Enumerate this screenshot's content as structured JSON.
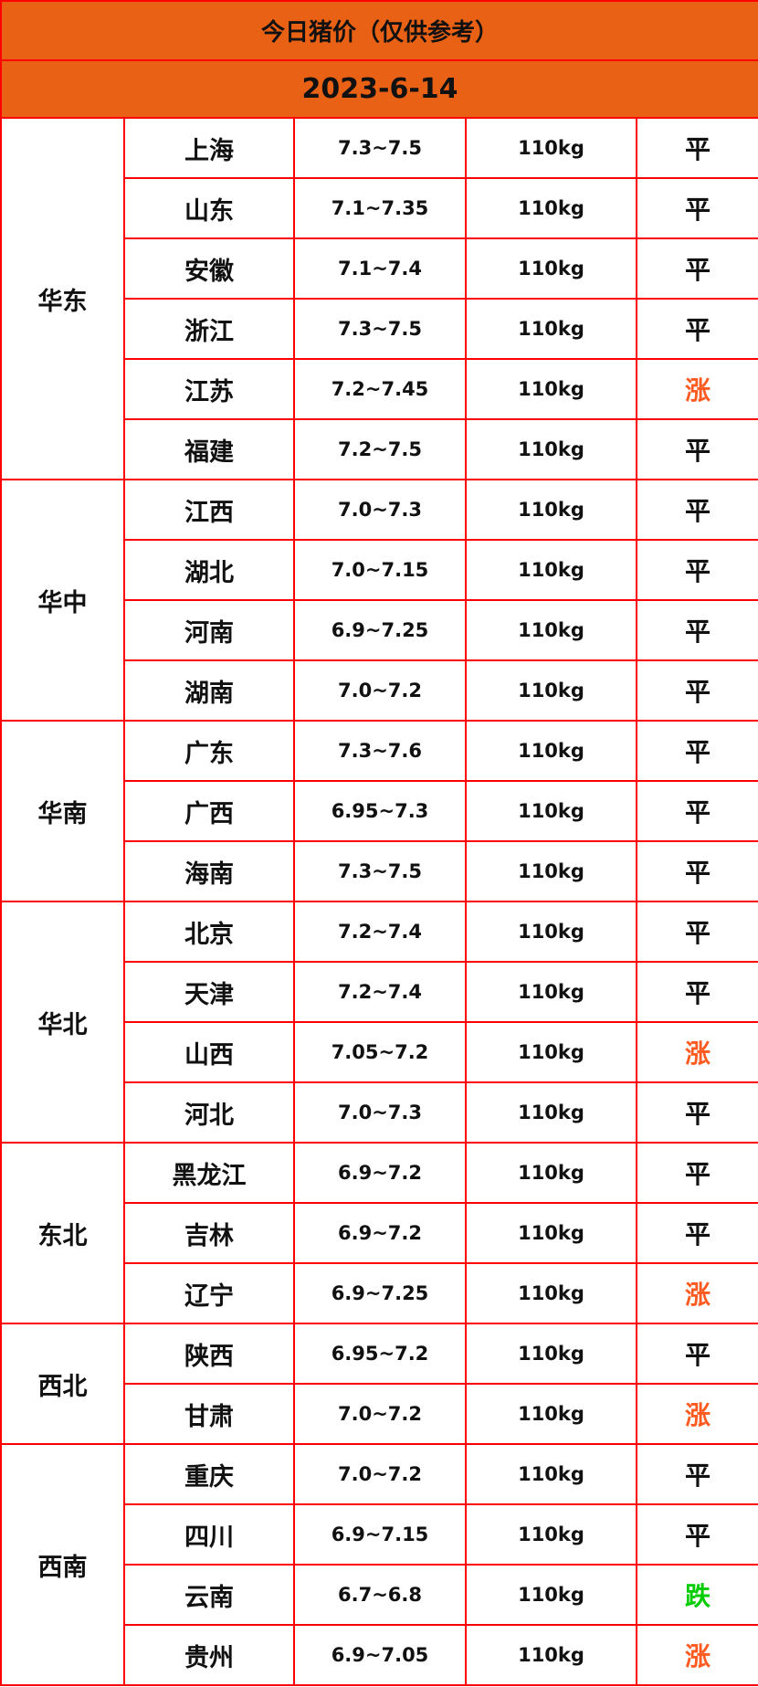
{
  "title": "今日猪价（仅供参考）",
  "date": "2023-6-14",
  "colors": {
    "header_bg": "#e96115",
    "border": "#ff0000",
    "rise": "#ff5a1f",
    "flat": "#111111",
    "fall": "#00cc00"
  },
  "regions": [
    {
      "name": "华东",
      "rows": [
        {
          "province": "上海",
          "price": "7.3~7.5",
          "weight": "110kg",
          "trend": "平"
        },
        {
          "province": "山东",
          "price": "7.1~7.35",
          "weight": "110kg",
          "trend": "平"
        },
        {
          "province": "安徽",
          "price": "7.1~7.4",
          "weight": "110kg",
          "trend": "平"
        },
        {
          "province": "浙江",
          "price": "7.3~7.5",
          "weight": "110kg",
          "trend": "平"
        },
        {
          "province": "江苏",
          "price": "7.2~7.45",
          "weight": "110kg",
          "trend": "涨"
        },
        {
          "province": "福建",
          "price": "7.2~7.5",
          "weight": "110kg",
          "trend": "平"
        }
      ]
    },
    {
      "name": "华中",
      "rows": [
        {
          "province": "江西",
          "price": "7.0~7.3",
          "weight": "110kg",
          "trend": "平"
        },
        {
          "province": "湖北",
          "price": "7.0~7.15",
          "weight": "110kg",
          "trend": "平"
        },
        {
          "province": "河南",
          "price": "6.9~7.25",
          "weight": "110kg",
          "trend": "平"
        },
        {
          "province": "湖南",
          "price": "7.0~7.2",
          "weight": "110kg",
          "trend": "平"
        }
      ]
    },
    {
      "name": "华南",
      "rows": [
        {
          "province": "广东",
          "price": "7.3~7.6",
          "weight": "110kg",
          "trend": "平"
        },
        {
          "province": "广西",
          "price": "6.95~7.3",
          "weight": "110kg",
          "trend": "平"
        },
        {
          "province": "海南",
          "price": "7.3~7.5",
          "weight": "110kg",
          "trend": "平"
        }
      ]
    },
    {
      "name": "华北",
      "rows": [
        {
          "province": "北京",
          "price": "7.2~7.4",
          "weight": "110kg",
          "trend": "平"
        },
        {
          "province": "天津",
          "price": "7.2~7.4",
          "weight": "110kg",
          "trend": "平"
        },
        {
          "province": "山西",
          "price": "7.05~7.2",
          "weight": "110kg",
          "trend": "涨"
        },
        {
          "province": "河北",
          "price": "7.0~7.3",
          "weight": "110kg",
          "trend": "平"
        }
      ]
    },
    {
      "name": "东北",
      "rows": [
        {
          "province": "黑龙江",
          "price": "6.9~7.2",
          "weight": "110kg",
          "trend": "平"
        },
        {
          "province": "吉林",
          "price": "6.9~7.2",
          "weight": "110kg",
          "trend": "平"
        },
        {
          "province": "辽宁",
          "price": "6.9~7.25",
          "weight": "110kg",
          "trend": "涨"
        }
      ]
    },
    {
      "name": "西北",
      "rows": [
        {
          "province": "陕西",
          "price": "6.95~7.2",
          "weight": "110kg",
          "trend": "平"
        },
        {
          "province": "甘肃",
          "price": "7.0~7.2",
          "weight": "110kg",
          "trend": "涨"
        }
      ]
    },
    {
      "name": "西南",
      "rows": [
        {
          "province": "重庆",
          "price": "7.0~7.2",
          "weight": "110kg",
          "trend": "平"
        },
        {
          "province": "四川",
          "price": "6.9~7.15",
          "weight": "110kg",
          "trend": "平"
        },
        {
          "province": "云南",
          "price": "6.7~6.8",
          "weight": "110kg",
          "trend": "跌"
        },
        {
          "province": "贵州",
          "price": "6.9~7.05",
          "weight": "110kg",
          "trend": "涨"
        }
      ]
    }
  ]
}
